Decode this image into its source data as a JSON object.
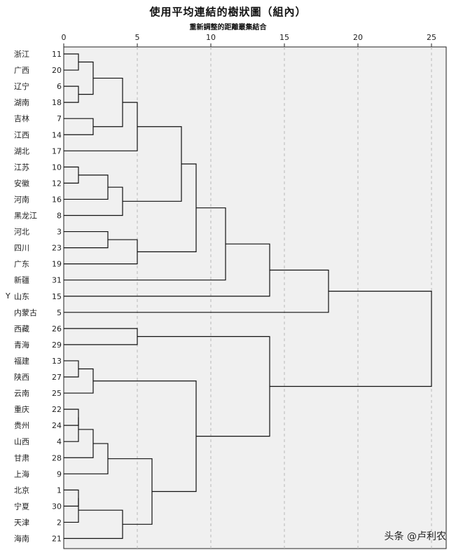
{
  "chart_data": {
    "type": "dendrogram",
    "title": "使用平均連結的樹狀圖（組內）",
    "xlabel": "重新調整的距離叢集結合",
    "ylabel": "Y",
    "xlim": [
      0,
      25
    ],
    "x_ticks": [
      0,
      5,
      10,
      15,
      20,
      25
    ],
    "gridlines": [
      5,
      10,
      15,
      20,
      25
    ],
    "leaves": [
      {
        "label": "浙江",
        "id": "11"
      },
      {
        "label": "广西",
        "id": "20"
      },
      {
        "label": "辽宁",
        "id": "6"
      },
      {
        "label": "湖南",
        "id": "18"
      },
      {
        "label": "吉林",
        "id": "7"
      },
      {
        "label": "江西",
        "id": "14"
      },
      {
        "label": "湖北",
        "id": "17"
      },
      {
        "label": "江苏",
        "id": "10"
      },
      {
        "label": "安徽",
        "id": "12"
      },
      {
        "label": "河南",
        "id": "16"
      },
      {
        "label": "黑龙江",
        "id": "8"
      },
      {
        "label": "河北",
        "id": "3"
      },
      {
        "label": "四川",
        "id": "23"
      },
      {
        "label": "广东",
        "id": "19"
      },
      {
        "label": "新疆",
        "id": "31"
      },
      {
        "label": "山东",
        "id": "15"
      },
      {
        "label": "内蒙古",
        "id": "5"
      },
      {
        "label": "西藏",
        "id": "26"
      },
      {
        "label": "青海",
        "id": "29"
      },
      {
        "label": "福建",
        "id": "13"
      },
      {
        "label": "陕西",
        "id": "27"
      },
      {
        "label": "云南",
        "id": "25"
      },
      {
        "label": "重庆",
        "id": "22"
      },
      {
        "label": "贵州",
        "id": "24"
      },
      {
        "label": "山西",
        "id": "4"
      },
      {
        "label": "甘肃",
        "id": "28"
      },
      {
        "label": "上海",
        "id": "9"
      },
      {
        "label": "北京",
        "id": "1"
      },
      {
        "label": "宁夏",
        "id": "30"
      },
      {
        "label": "天津",
        "id": "2"
      },
      {
        "label": "海南",
        "id": "21"
      }
    ],
    "merges": [
      {
        "a": "L0",
        "b": "L1",
        "height": 1.0
      },
      {
        "a": "L2",
        "b": "L3",
        "height": 1.0
      },
      {
        "a": "M0",
        "b": "M1",
        "height": 2.0
      },
      {
        "a": "L4",
        "b": "L5",
        "height": 2.0
      },
      {
        "a": "M2",
        "b": "M3",
        "height": 4.0
      },
      {
        "a": "M4",
        "b": "L6",
        "height": 5.0
      },
      {
        "a": "L7",
        "b": "L8",
        "height": 1.0
      },
      {
        "a": "M6",
        "b": "L9",
        "height": 3.0
      },
      {
        "a": "M7",
        "b": "L10",
        "height": 4.0
      },
      {
        "a": "L11",
        "b": "L12",
        "height": 3.0
      },
      {
        "a": "M9",
        "b": "L13",
        "height": 5.0
      },
      {
        "a": "M5",
        "b": "M8",
        "height": 8.0
      },
      {
        "a": "M11",
        "b": "M10",
        "height": 9.0
      },
      {
        "a": "M12",
        "b": "L14",
        "height": 11.0
      },
      {
        "a": "M13",
        "b": "L15",
        "height": 14.0
      },
      {
        "a": "M14",
        "b": "L16",
        "height": 18.0
      },
      {
        "a": "L17",
        "b": "L18",
        "height": 5.0
      },
      {
        "a": "L19",
        "b": "L20",
        "height": 1.0
      },
      {
        "a": "M17",
        "b": "L21",
        "height": 2.0
      },
      {
        "a": "L22",
        "b": "L23",
        "height": 1.0
      },
      {
        "a": "M19",
        "b": "L24",
        "height": 1.0
      },
      {
        "a": "M20",
        "b": "L25",
        "height": 2.0
      },
      {
        "a": "M21",
        "b": "L26",
        "height": 3.0
      },
      {
        "a": "L27",
        "b": "L28",
        "height": 1.0
      },
      {
        "a": "M23",
        "b": "L29",
        "height": 1.0
      },
      {
        "a": "M24",
        "b": "L30",
        "height": 4.0
      },
      {
        "a": "M22",
        "b": "M25",
        "height": 6.0
      },
      {
        "a": "M18",
        "b": "M26",
        "height": 9.0
      },
      {
        "a": "M16",
        "b": "M27",
        "height": 14.0
      },
      {
        "a": "M15",
        "b": "M28",
        "height": 25.0
      }
    ]
  },
  "watermark": "头条 @卢利农"
}
